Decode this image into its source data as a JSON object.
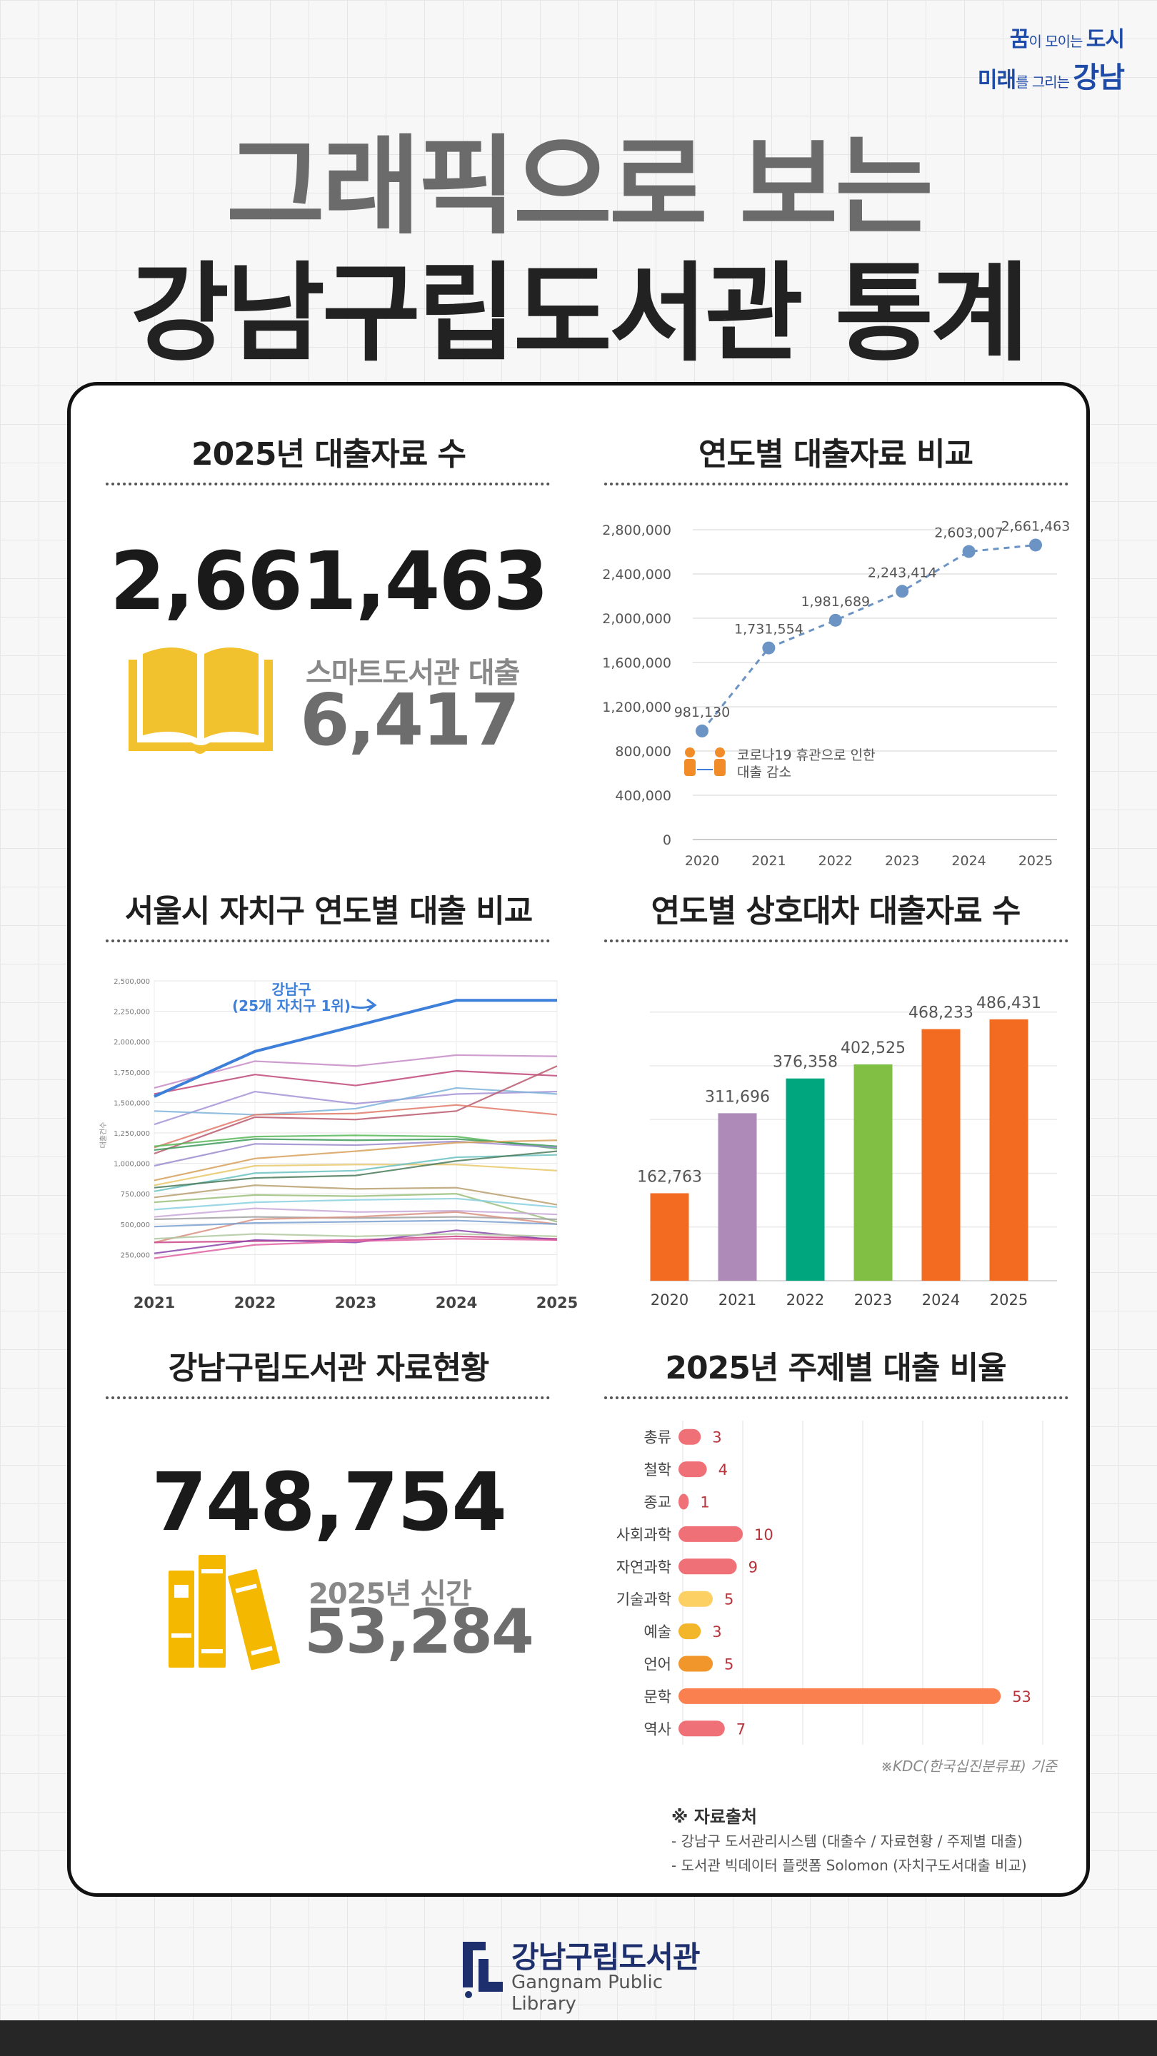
{
  "logo": {
    "line1_a": "꿈",
    "line1_b": "이 모이는 ",
    "line1_c": "도시",
    "line2_a": "미래",
    "line2_b": "를 그리는 ",
    "line2_c": "강남"
  },
  "title": {
    "line1": "그래픽으로 보는",
    "line2": "강남구립도서관 통계"
  },
  "sec1": {
    "title": "2025년 대출자료 수",
    "total": "2,661,463",
    "smart_label": "스마트도서관 대출",
    "smart_value": "6,417"
  },
  "sec2": {
    "title": "연도별 대출자료 비교",
    "annotation_line1": "코로나19 휴관으로 인한",
    "annotation_line2": "대출 감소"
  },
  "sec3": {
    "title": "서울시 자치구 연도별 대출 비교",
    "gangnam_label1": "강남구",
    "gangnam_label2": "(25개 자치구 1위)",
    "ylabel": "대출건수"
  },
  "sec4": {
    "title": "연도별 상호대차 대출자료 수"
  },
  "sec5": {
    "title": "강남구립도서관 자료현황",
    "total": "748,754",
    "new_label": "2025년 신간",
    "new_value": "53,284"
  },
  "sec6": {
    "title": "2025년 주제별 대출 비율",
    "note": "※KDC(한국십진분류표) 기준"
  },
  "source": {
    "heading": "※ 자료출처",
    "line1": "- 강남구 도서관리시스템 (대출수 / 자료현황 / 주제별 대출)",
    "line2": "- 도서관 빅데이터 플랫폼 Solomon (자치구도서대출 비교)"
  },
  "footer": {
    "name": "강남구립도서관",
    "eng": "Gangnam Public Library"
  },
  "chart_data": [
    {
      "type": "line",
      "title": "연도별 대출자료 비교",
      "x": [
        "2020",
        "2021",
        "2022",
        "2023",
        "2024",
        "2025"
      ],
      "values": [
        981130,
        1731554,
        1981689,
        2243414,
        2603007,
        2661463
      ],
      "labels": [
        "981,130",
        "1,731,554",
        "1,981,689",
        "2,243,414",
        "2,603,007",
        "2,661,463"
      ],
      "ylim": [
        0,
        2800000
      ],
      "yticks": [
        0,
        400000,
        800000,
        1200000,
        1600000,
        2000000,
        2400000,
        2800000
      ],
      "ytick_labels": [
        "0",
        "400,000",
        "800,000",
        "1,200,000",
        "1,600,000",
        "2,000,000",
        "2,400,000",
        "2,800,000"
      ],
      "color": "#6b93c4",
      "grid": true
    },
    {
      "type": "line",
      "title": "서울시 자치구 연도별 대출 비교",
      "x": [
        "2021",
        "2022",
        "2023",
        "2024",
        "2025"
      ],
      "ylim": [
        0,
        2500000
      ],
      "yticks": [
        250000,
        500000,
        750000,
        1000000,
        1250000,
        1500000,
        1750000,
        2000000,
        2250000,
        2500000
      ],
      "ytick_labels": [
        "250,000",
        "500,000",
        "750,000",
        "1,000,000",
        "1,250,000",
        "1,500,000",
        "1,750,000",
        "2,000,000",
        "2,250,000",
        "2,500,000"
      ],
      "highlight_color": "#3d7fd9",
      "series": [
        {
          "values": [
            1550000,
            1920000,
            2130000,
            2340000,
            2340000
          ],
          "color": "#3d7fd9",
          "highlight": true
        },
        {
          "values": [
            1620000,
            1840000,
            1800000,
            1890000,
            1880000
          ],
          "color": "#c68bc6"
        },
        {
          "values": [
            1570000,
            1730000,
            1640000,
            1760000,
            1720000
          ],
          "color": "#c0487a"
        },
        {
          "values": [
            1320000,
            1590000,
            1490000,
            1570000,
            1590000
          ],
          "color": "#a593d6"
        },
        {
          "values": [
            1430000,
            1400000,
            1450000,
            1620000,
            1570000
          ],
          "color": "#7fb3d9"
        },
        {
          "values": [
            1080000,
            1380000,
            1360000,
            1430000,
            1800000
          ],
          "color": "#b85a6e"
        },
        {
          "values": [
            1130000,
            1400000,
            1410000,
            1480000,
            1400000
          ],
          "color": "#e07a6a"
        },
        {
          "values": [
            1140000,
            1220000,
            1230000,
            1220000,
            1120000
          ],
          "color": "#58b858"
        },
        {
          "values": [
            1110000,
            1200000,
            1190000,
            1200000,
            1140000
          ],
          "color": "#3d9a5a"
        },
        {
          "values": [
            980000,
            1160000,
            1150000,
            1180000,
            1130000
          ],
          "color": "#9a8acb"
        },
        {
          "values": [
            860000,
            1040000,
            1100000,
            1170000,
            1190000
          ],
          "color": "#d6a05a"
        },
        {
          "values": [
            820000,
            980000,
            990000,
            990000,
            940000
          ],
          "color": "#e8c86a"
        },
        {
          "values": [
            770000,
            920000,
            940000,
            1050000,
            1070000
          ],
          "color": "#6cc2c2"
        },
        {
          "values": [
            800000,
            880000,
            900000,
            1020000,
            1100000
          ],
          "color": "#4a7a5a"
        },
        {
          "values": [
            720000,
            820000,
            790000,
            800000,
            660000
          ],
          "color": "#b8a070"
        },
        {
          "values": [
            680000,
            740000,
            730000,
            750000,
            520000
          ],
          "color": "#9ac07a"
        },
        {
          "values": [
            620000,
            680000,
            700000,
            710000,
            640000
          ],
          "color": "#8ad0e0"
        },
        {
          "values": [
            560000,
            630000,
            600000,
            610000,
            580000
          ],
          "color": "#c8a8d8"
        },
        {
          "values": [
            540000,
            560000,
            550000,
            560000,
            540000
          ],
          "color": "#a0a0a0"
        },
        {
          "values": [
            350000,
            540000,
            560000,
            600000,
            500000
          ],
          "color": "#d89080"
        },
        {
          "values": [
            480000,
            510000,
            520000,
            530000,
            500000
          ],
          "color": "#7aa0d0"
        },
        {
          "values": [
            350000,
            360000,
            370000,
            400000,
            380000
          ],
          "color": "#cc4488"
        },
        {
          "values": [
            260000,
            370000,
            350000,
            450000,
            370000
          ],
          "color": "#8844aa"
        },
        {
          "values": [
            220000,
            330000,
            360000,
            380000,
            370000
          ],
          "color": "#e060a0"
        },
        {
          "values": [
            380000,
            420000,
            400000,
            420000,
            400000
          ],
          "color": "#b0c8a0"
        }
      ]
    },
    {
      "type": "bar",
      "title": "연도별 상호대차 대출자료 수",
      "categories": [
        "2020",
        "2021",
        "2022",
        "2023",
        "2024",
        "2025"
      ],
      "values": [
        162763,
        311696,
        376358,
        402525,
        468233,
        486431
      ],
      "labels": [
        "162,763",
        "311,696",
        "376,358",
        "402,525",
        "468,233",
        "486,431"
      ],
      "colors": [
        "#f26b21",
        "#ae8ab8",
        "#00a67e",
        "#80bf44",
        "#f26b21",
        "#f26b21"
      ],
      "ylim": [
        0,
        550000
      ],
      "grid": true
    },
    {
      "type": "bar",
      "orientation": "horizontal",
      "title": "2025년 주제별 대출 비율",
      "categories": [
        "총류",
        "철학",
        "종교",
        "사회과학",
        "자연과학",
        "기술과학",
        "예술",
        "언어",
        "문학",
        "역사"
      ],
      "values": [
        3,
        4,
        1,
        10,
        9,
        5,
        3,
        5,
        53,
        7
      ],
      "colors": [
        "#f07078",
        "#f07078",
        "#f07078",
        "#f07078",
        "#f07078",
        "#fcd062",
        "#f3b52a",
        "#f0962a",
        "#fa8050",
        "#f07078"
      ],
      "xlim": [
        0,
        60
      ],
      "grid": true
    }
  ]
}
